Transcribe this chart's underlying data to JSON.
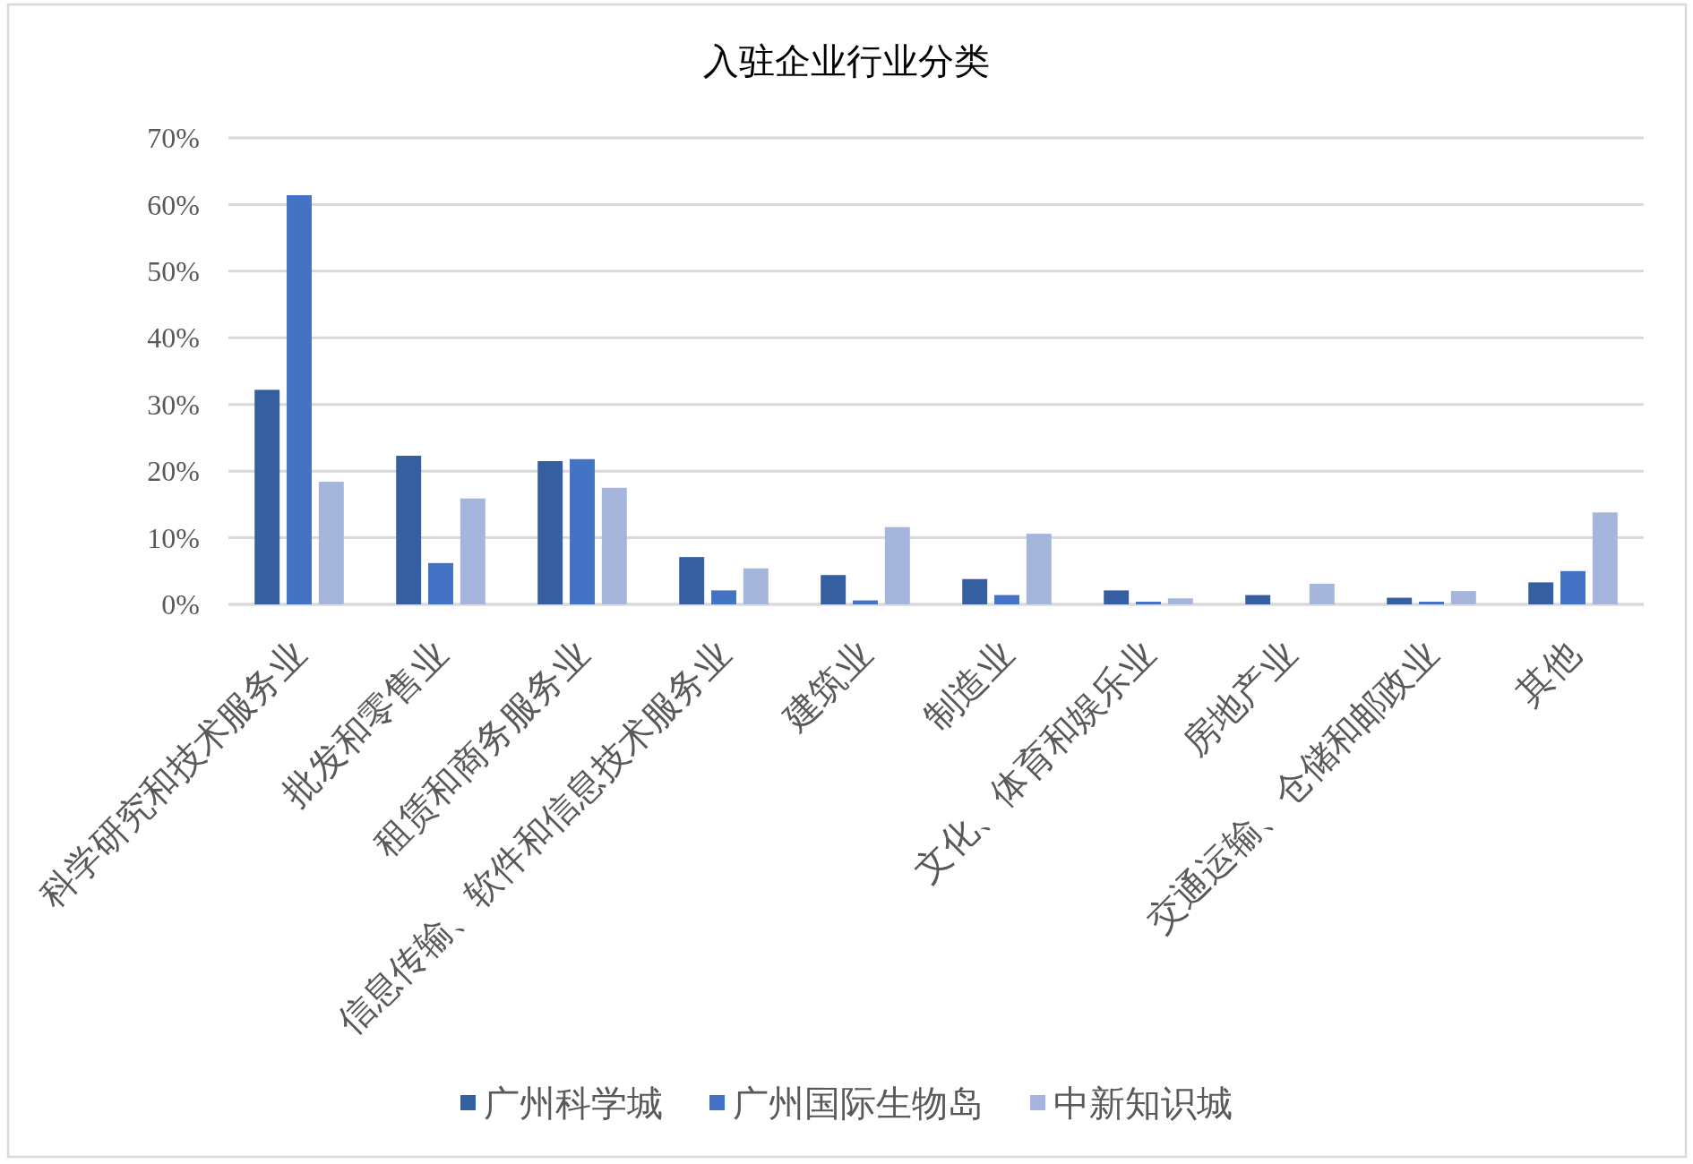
{
  "chart_data": {
    "type": "bar",
    "title": "入驻企业行业分类",
    "categories": [
      "科学研究和技术服务业",
      "批发和零售业",
      "租赁和商务服务业",
      "信息传输、软件和信息技术服务业",
      "建筑业",
      "制造业",
      "文化、体育和娱乐业",
      "房地产业",
      "交通运输、仓储和邮政业",
      "其他"
    ],
    "series": [
      {
        "name": "广州科学城",
        "color": "#365fa1",
        "values": [
          32.2,
          22.3,
          21.5,
          7.1,
          4.4,
          3.8,
          2.1,
          1.4,
          1.0,
          3.3
        ]
      },
      {
        "name": "广州国际生物岛",
        "color": "#4472c4",
        "values": [
          61.4,
          6.2,
          21.8,
          2.1,
          0.6,
          1.4,
          0.4,
          0,
          0.4,
          5.0
        ]
      },
      {
        "name": "中新知识城",
        "color": "#a6b5db",
        "values": [
          18.4,
          15.9,
          17.5,
          5.4,
          11.6,
          10.6,
          0.9,
          3.1,
          2.0,
          13.8
        ]
      }
    ],
    "ylim": [
      0,
      70
    ],
    "yticks": [
      {
        "value": 0,
        "label": "0%"
      },
      {
        "value": 10,
        "label": "10%"
      },
      {
        "value": 20,
        "label": "20%"
      },
      {
        "value": 30,
        "label": "30%"
      },
      {
        "value": 40,
        "label": "40%"
      },
      {
        "value": 50,
        "label": "50%"
      },
      {
        "value": 60,
        "label": "60%"
      },
      {
        "value": 70,
        "label": "70%"
      }
    ],
    "grid": "y",
    "legend": "bottom"
  }
}
